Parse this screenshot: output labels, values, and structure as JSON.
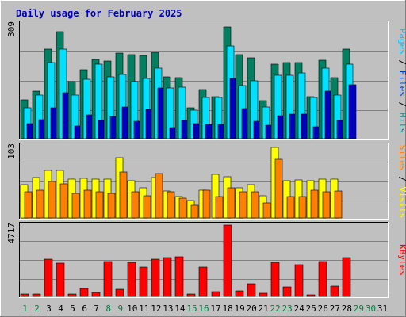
{
  "chart_data": [
    {
      "type": "bar",
      "title": "Daily usage for February 2025",
      "categories": [
        "1",
        "2",
        "3",
        "4",
        "5",
        "6",
        "7",
        "8",
        "9",
        "10",
        "11",
        "12",
        "13",
        "14",
        "15",
        "16",
        "17",
        "18",
        "19",
        "20",
        "21",
        "22",
        "23",
        "24",
        "25",
        "26",
        "27",
        "28",
        "29",
        "30",
        "31"
      ],
      "day_colors": [
        "#008040",
        "#008040",
        "#000000",
        "#000000",
        "#000000",
        "#000000",
        "#000000",
        "#008040",
        "#008040",
        "#000000",
        "#000000",
        "#000000",
        "#000000",
        "#000000",
        "#008040",
        "#008040",
        "#000000",
        "#000000",
        "#000000",
        "#000000",
        "#000000",
        "#008040",
        "#008040",
        "#000000",
        "#000000",
        "#000000",
        "#000000",
        "#000000",
        "#008040",
        "#008040",
        "#000000"
      ],
      "panels": [
        {
          "id": "hits-files-pages",
          "ymax": 309,
          "ymax_label": "309",
          "side_label": [
            {
              "text": "Pages",
              "color": "#00C0FF"
            },
            {
              "text": " / ",
              "color": "#000000"
            },
            {
              "text": "Files",
              "color": "#0040C0"
            },
            {
              "text": " / ",
              "color": "#000000"
            },
            {
              "text": "Hits",
              "color": "#008080"
            }
          ],
          "series": [
            {
              "name": "Hits",
              "color": "#008060",
              "values": [
                105,
                127,
                240,
                287,
                154,
                185,
                214,
                209,
                230,
                225,
                223,
                233,
                167,
                165,
                84,
                132,
                114,
                300,
                226,
                218,
                102,
                200,
                205,
                204,
                113,
                210,
                164,
                240,
                null,
                null,
                null
              ]
            },
            {
              "name": "Files",
              "color": "#00E0FF",
              "values": [
                84,
                118,
                204,
                240,
                117,
                159,
                200,
                166,
                172,
                154,
                163,
                189,
                137,
                139,
                77,
                111,
                111,
                250,
                142,
                155,
                86,
                171,
                170,
                177,
                110,
                189,
                117,
                200,
                null,
                null,
                null
              ]
            },
            {
              "name": "Pages",
              "color": "#0000C0",
              "values": [
                41,
                52,
                84,
                124,
                35,
                63,
                49,
                60,
                85,
                46,
                78,
                136,
                29,
                48,
                40,
                38,
                39,
                163,
                81,
                47,
                37,
                62,
                65,
                65,
                31,
                128,
                49,
                144,
                null,
                null,
                null
              ]
            }
          ]
        },
        {
          "id": "visits-sites",
          "ymax": 103,
          "ymax_label": "103",
          "side_label": [
            {
              "text": "Sites",
              "color": "#FF8000"
            },
            {
              "text": " / ",
              "color": "#000000"
            },
            {
              "text": "Visits",
              "color": "#FFFF00"
            }
          ],
          "series": [
            {
              "name": "Visits",
              "color": "#FFFF00",
              "values": [
                48,
                58,
                68,
                68,
                56,
                57,
                56,
                56,
                86,
                53,
                43,
                58,
                38,
                30,
                25,
                40,
                62,
                59,
                43,
                48,
                32,
                101,
                53,
                54,
                53,
                55,
                56,
                null,
                null,
                null,
                null
              ]
            },
            {
              "name": "Sites",
              "color": "#FF8000",
              "values": [
                37,
                40,
                52,
                49,
                35,
                40,
                37,
                35,
                66,
                37,
                32,
                63,
                37,
                28,
                18,
                40,
                30,
                43,
                37,
                37,
                22,
                84,
                30,
                30,
                40,
                37,
                38,
                null,
                null,
                null,
                null
              ]
            }
          ]
        },
        {
          "id": "kbytes",
          "ymax": 4717,
          "ymax_label": "4717",
          "side_label": [
            {
              "text": "KBytes",
              "color": "#FF0000"
            }
          ],
          "series": [
            {
              "name": "KBytes",
              "color": "#FF0000",
              "values": [
                180,
                180,
                2480,
                2200,
                180,
                500,
                240,
                2300,
                470,
                2250,
                1920,
                2440,
                2560,
                2620,
                170,
                1960,
                300,
                4710,
                350,
                820,
                230,
                2270,
                630,
                2090,
                100,
                2300,
                700,
                2560,
                null,
                null,
                null
              ]
            }
          ]
        }
      ]
    }
  ]
}
